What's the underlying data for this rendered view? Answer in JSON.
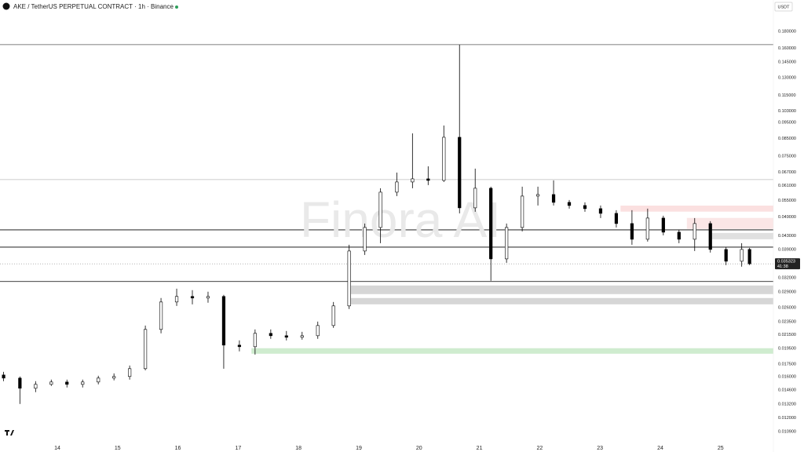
{
  "header": {
    "title": "AKE / TetherUS PERPETUAL CONTRACT · 1h · Binance",
    "currency": "USDT",
    "watermark": "Finora AI"
  },
  "chart_data": {
    "type": "candlestick",
    "x": [
      13.11,
      13.38,
      13.64,
      13.9,
      14.16,
      14.42,
      14.68,
      14.94,
      15.2,
      15.46,
      15.72,
      15.98,
      16.24,
      16.5,
      16.76,
      17.02,
      17.28,
      17.54,
      17.8,
      18.06,
      18.32,
      18.58,
      18.84,
      19.1,
      19.36,
      19.63,
      19.89,
      20.15,
      20.41,
      20.67,
      20.93,
      21.19,
      21.45,
      21.71,
      21.97,
      22.23,
      22.49,
      22.75,
      23.01,
      23.27,
      23.53,
      23.79,
      24.05,
      24.31,
      24.57,
      24.83,
      25.09,
      25.35,
      25.48
    ],
    "open": [
      0.01621,
      0.01586,
      0.01477,
      0.01518,
      0.01543,
      0.01518,
      0.01543,
      0.01586,
      0.01604,
      0.01694,
      0.0223,
      0.02703,
      0.0281,
      0.02779,
      0.0281,
      0.01998,
      0.01976,
      0.0217,
      0.02134,
      0.02111,
      0.02134,
      0.02292,
      0.0263,
      0.03863,
      0.04556,
      0.05834,
      0.06266,
      0.06405,
      0.06335,
      0.08571,
      0.05227,
      0.05997,
      0.03656,
      0.04556,
      0.05676,
      0.05739,
      0.05432,
      0.05314,
      0.05198,
      0.05029,
      0.04683,
      0.04195,
      0.04866,
      0.04408,
      0.04195,
      0.04683,
      0.03906,
      0.03596,
      0.03906
    ],
    "high": [
      0.01657,
      0.01604,
      0.01552,
      0.01569,
      0.01569,
      0.01569,
      0.01612,
      0.01639,
      0.01732,
      0.02292,
      0.02779,
      0.02968,
      0.02936,
      0.02904,
      0.02841,
      0.02065,
      0.0223,
      0.0223,
      0.02206,
      0.02193,
      0.02356,
      0.02703,
      0.04036,
      0.04683,
      0.05997,
      0.06693,
      0.0881,
      0.06994,
      0.09308,
      0.1639,
      0.0688,
      0.06063,
      0.04683,
      0.06063,
      0.06063,
      0.06335,
      0.05522,
      0.05432,
      0.05314,
      0.05142,
      0.05142,
      0.05198,
      0.04947,
      0.04481,
      0.04866,
      0.04761,
      0.0397,
      0.04081,
      0.03949
    ],
    "low": [
      0.01552,
      0.01323,
      0.01437,
      0.01501,
      0.01485,
      0.01485,
      0.01518,
      0.01561,
      0.01569,
      0.01675,
      0.0217,
      0.0263,
      0.02659,
      0.02689,
      0.01694,
      0.01912,
      0.0187,
      0.02088,
      0.02065,
      0.02076,
      0.02088,
      0.02255,
      0.02573,
      0.03758,
      0.04081,
      0.05676,
      0.05997,
      0.0613,
      0.06266,
      0.05029,
      0.05085,
      0.03136,
      0.03557,
      0.04432,
      0.05314,
      0.05314,
      0.05198,
      0.05085,
      0.04866,
      0.04556,
      0.04036,
      0.04127,
      0.04312,
      0.04081,
      0.03863,
      0.03821,
      0.03499,
      0.03462,
      0.03499
    ],
    "close": [
      0.01586,
      0.01477,
      0.01518,
      0.01543,
      0.01518,
      0.01543,
      0.01586,
      0.01604,
      0.01694,
      0.0223,
      0.02703,
      0.0281,
      0.02779,
      0.0281,
      0.01998,
      0.01976,
      0.0217,
      0.02134,
      0.02111,
      0.02134,
      0.02292,
      0.0263,
      0.03863,
      0.04556,
      0.05834,
      0.06266,
      0.06405,
      0.06335,
      0.08571,
      0.05227,
      0.05997,
      0.03656,
      0.04556,
      0.05676,
      0.05739,
      0.05432,
      0.05314,
      0.05198,
      0.05029,
      0.04683,
      0.04195,
      0.04866,
      0.04408,
      0.04195,
      0.04683,
      0.03906,
      0.03596,
      0.03906,
      0.03532
    ],
    "up_color": "#ffffff",
    "down_color": "#000000",
    "outline_color": "#000000",
    "log_y": true,
    "ylim": [
      0.01,
      0.2
    ],
    "yticks": [
      {
        "value": 0.18,
        "label": "0.180000"
      },
      {
        "value": 0.16,
        "label": "0.160000"
      },
      {
        "value": 0.145,
        "label": "0.145000"
      },
      {
        "value": 0.13,
        "label": "0.130000"
      },
      {
        "value": 0.115,
        "label": "0.115000"
      },
      {
        "value": 0.103,
        "label": "0.103000"
      },
      {
        "value": 0.095,
        "label": "0.095000"
      },
      {
        "value": 0.085,
        "label": "0.085000"
      },
      {
        "value": 0.075,
        "label": "0.075000"
      },
      {
        "value": 0.067,
        "label": "0.067000"
      },
      {
        "value": 0.061,
        "label": "0.061000"
      },
      {
        "value": 0.055,
        "label": "0.055000"
      },
      {
        "value": 0.049,
        "label": "0.049000"
      },
      {
        "value": 0.043,
        "label": "0.043000"
      },
      {
        "value": 0.039,
        "label": "0.039000"
      },
      {
        "value": 0.032,
        "label": "0.032000"
      },
      {
        "value": 0.029,
        "label": "0.029000"
      },
      {
        "value": 0.026,
        "label": "0.026000"
      },
      {
        "value": 0.0235,
        "label": "0.023500"
      },
      {
        "value": 0.0215,
        "label": "0.021500"
      },
      {
        "value": 0.0195,
        "label": "0.019500"
      },
      {
        "value": 0.0175,
        "label": "0.017500"
      },
      {
        "value": 0.016,
        "label": "0.016000"
      },
      {
        "value": 0.0146,
        "label": "0.014600"
      },
      {
        "value": 0.0132,
        "label": "0.013200"
      },
      {
        "value": 0.012,
        "label": "0.012000"
      },
      {
        "value": 0.0109,
        "label": "0.010900"
      }
    ],
    "xlim": [
      13.05,
      25.875
    ],
    "xticks": [
      14,
      15,
      16,
      17,
      18,
      19,
      20,
      21,
      22,
      23,
      24,
      25
    ],
    "levels": [
      {
        "value": 0.164,
        "color": "#555555"
      },
      {
        "value": 0.0637,
        "color": "#bbbbbb"
      },
      {
        "value": 0.0448,
        "color": "#000000"
      },
      {
        "value": 0.0397,
        "color": "#000000"
      },
      {
        "value": 0.0312,
        "color": "#000000"
      }
    ],
    "zones": [
      {
        "from": 18.87,
        "low": 0.02856,
        "high": 0.03034,
        "color": "#d6d6d6"
      },
      {
        "from": 18.87,
        "low": 0.02659,
        "high": 0.02779,
        "color": "#d6d6d6"
      },
      {
        "from": 17.22,
        "low": 0.01881,
        "high": 0.01955,
        "color": "#cfeccf"
      },
      {
        "from": 23.34,
        "low": 0.0509,
        "high": 0.0531,
        "color": "#fbe0e0"
      },
      {
        "from": 24.44,
        "low": 0.0451,
        "high": 0.0487,
        "color": "#fbe6e6"
      },
      {
        "from": 24.83,
        "low": 0.04195,
        "high": 0.04384,
        "color": "#e0e0e0"
      }
    ],
    "last_price": 0.035323,
    "countdown": "41:38"
  }
}
